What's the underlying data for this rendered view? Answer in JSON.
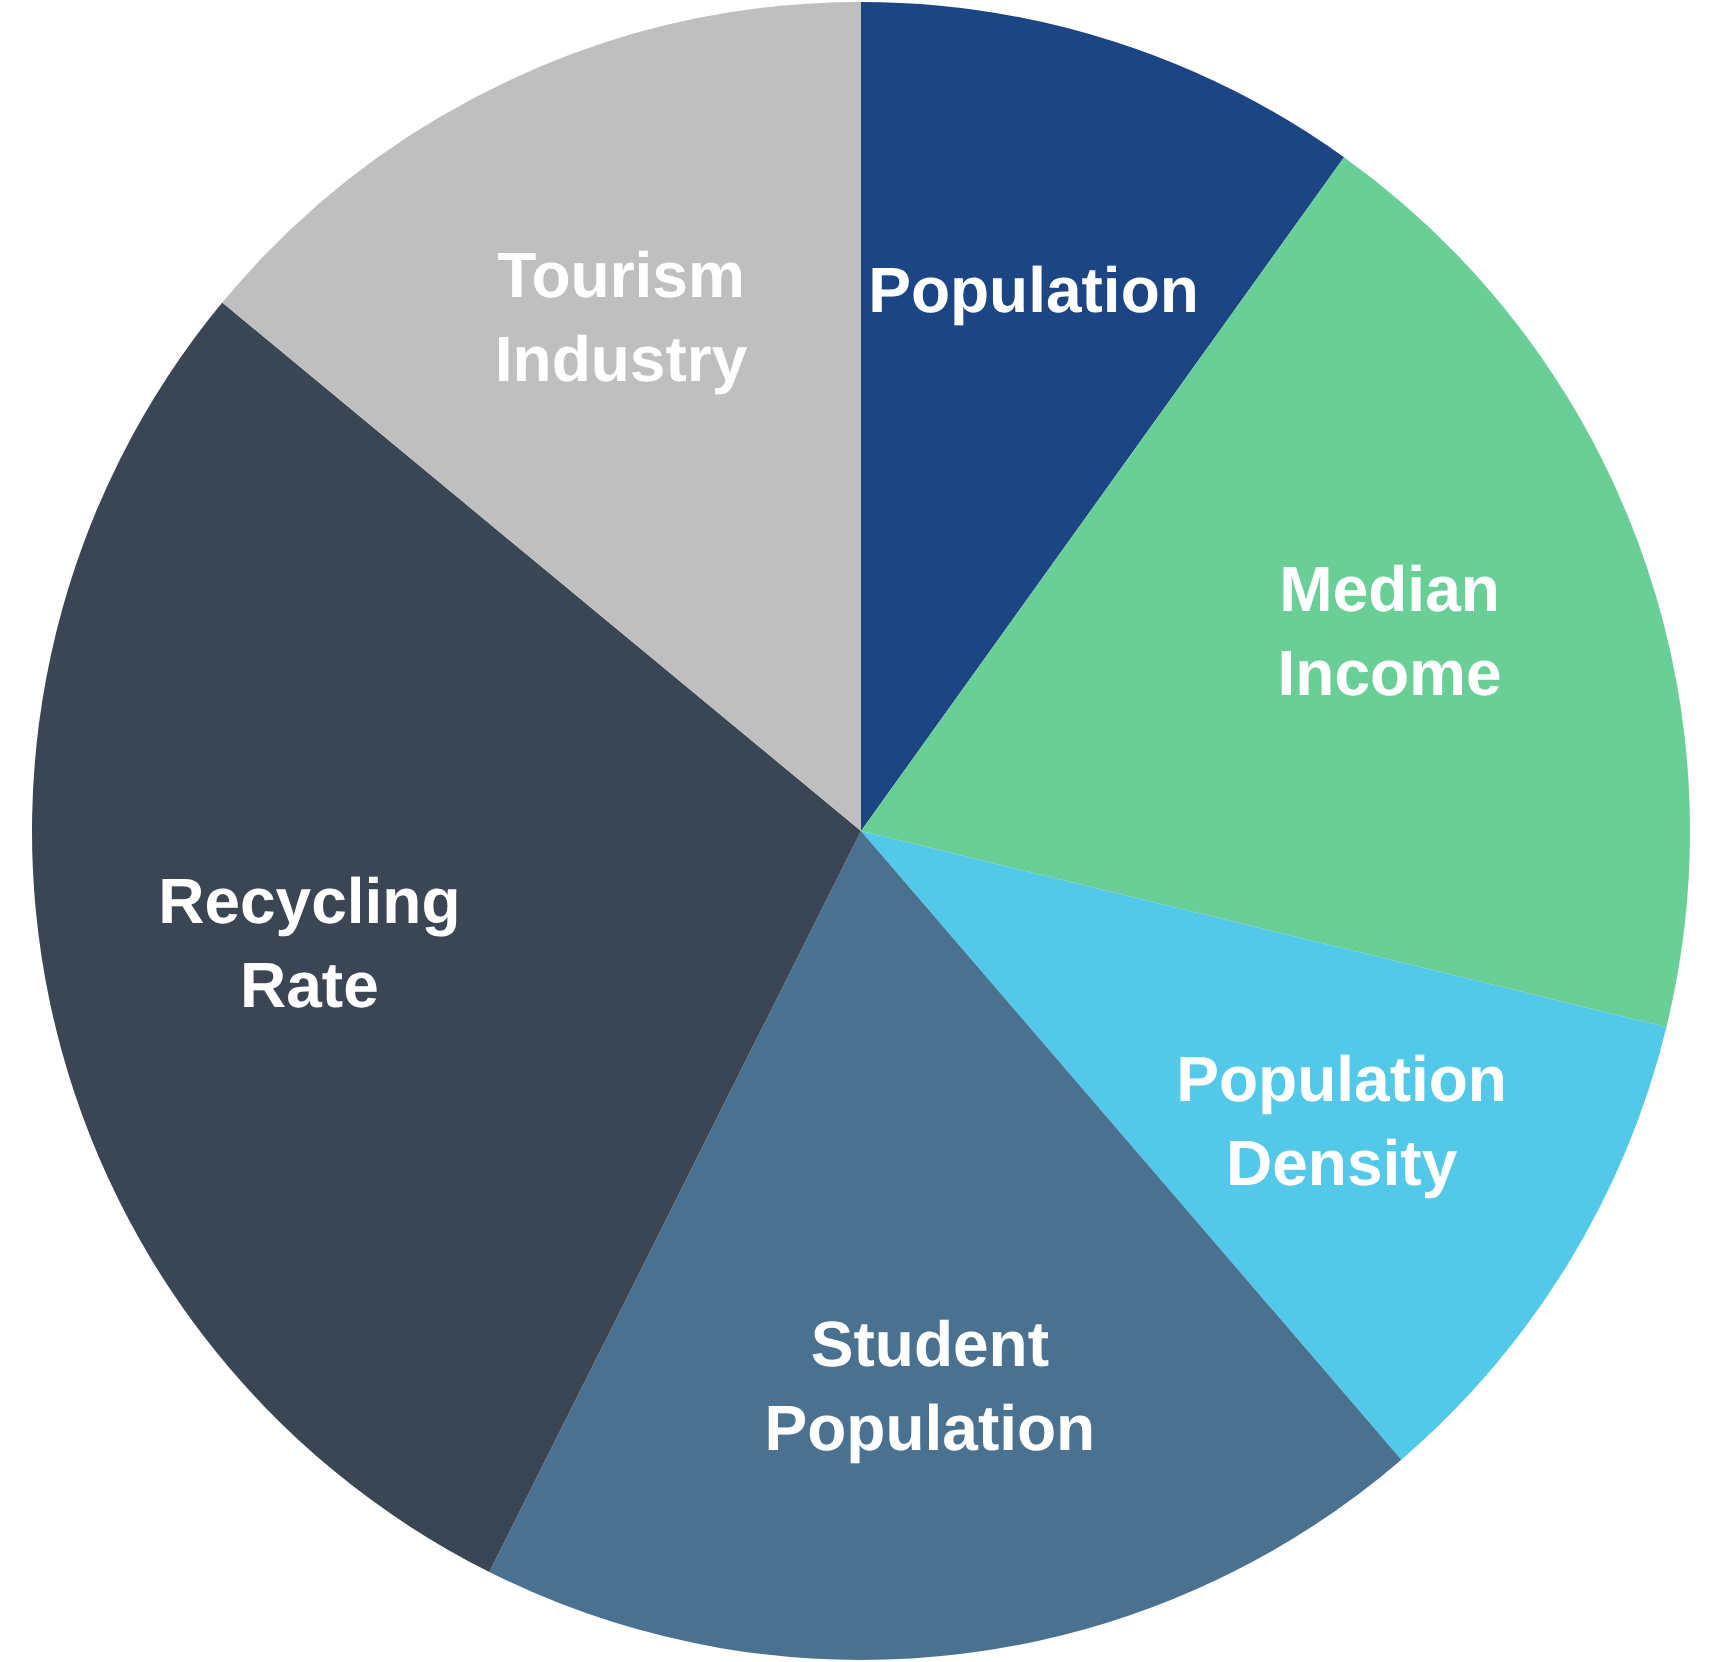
{
  "chart_data": {
    "type": "pie",
    "categories": [
      "Population",
      "Median Income",
      "Population Density",
      "Student Population",
      "Recycling Rate",
      "Tourism Industry"
    ],
    "values": [
      9.9,
      18.9,
      9.9,
      18.7,
      28.6,
      14.0
    ],
    "colors": [
      "#1c4584",
      "#6acf96",
      "#52c9e9",
      "#4a7190",
      "#3a4653",
      "#bfbfbf"
    ],
    "legend": false
  }
}
